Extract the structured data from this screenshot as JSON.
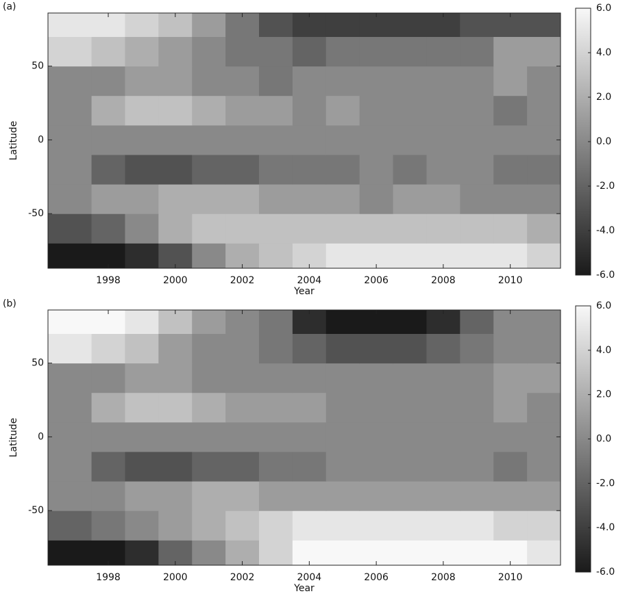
{
  "chart_data": [
    {
      "type": "heatmap",
      "panel_label": "(a)",
      "xlabel": "Year",
      "ylabel": "Latitude",
      "x": [
        1997,
        1998,
        1999,
        2000,
        2001,
        2002,
        2003,
        2004,
        2005,
        2006,
        2007,
        2008,
        2009,
        2010,
        2011
      ],
      "y": [
        -80,
        -60,
        -40,
        -20,
        0,
        20,
        40,
        60,
        80
      ],
      "z": [
        [
          -6,
          -6,
          -5,
          -3,
          0,
          2,
          3,
          4,
          5,
          5,
          5,
          5,
          5,
          5,
          4
        ],
        [
          -3,
          -2,
          0,
          2,
          3,
          3,
          3,
          3,
          3,
          3,
          3,
          3,
          3,
          3,
          2
        ],
        [
          0,
          1,
          1,
          2,
          2,
          2,
          1,
          1,
          1,
          0,
          1,
          1,
          0,
          0,
          0
        ],
        [
          0,
          -2,
          -3,
          -3,
          -2,
          -2,
          -1,
          -1,
          -1,
          0,
          -1,
          0,
          0,
          -1,
          -1
        ],
        [
          0,
          0,
          0,
          0,
          0,
          0,
          0,
          0,
          0,
          0,
          0,
          0,
          0,
          0,
          0
        ],
        [
          0,
          2,
          3,
          3,
          2,
          1,
          1,
          0,
          1,
          0,
          0,
          0,
          0,
          -1,
          0
        ],
        [
          0,
          0,
          1,
          1,
          0,
          0,
          -1,
          0,
          0,
          0,
          0,
          0,
          0,
          1,
          0
        ],
        [
          4,
          3,
          2,
          1,
          0,
          -1,
          -1,
          -2,
          -1,
          -1,
          -1,
          -1,
          -1,
          1,
          1
        ],
        [
          5,
          5,
          4,
          3,
          1,
          -1,
          -3,
          -4,
          -4,
          -4,
          -4,
          -4,
          -3,
          -3,
          -3
        ]
      ],
      "xlim": [
        1996.2,
        2011.5
      ],
      "ylim": [
        -87,
        86
      ],
      "xticks": [
        1998,
        2000,
        2002,
        2004,
        2006,
        2008,
        2010
      ],
      "yticks": [
        -50,
        0,
        50
      ],
      "clim": [
        -6,
        6
      ],
      "colorscale": [
        "#1a1a1a",
        "#f8f8f8"
      ],
      "cticks": [
        {
          "value": -6,
          "label": "-6.0"
        },
        {
          "value": -4,
          "label": "-4.0"
        },
        {
          "value": -2,
          "label": "-2.0"
        },
        {
          "value": 0,
          "label": "0.0"
        },
        {
          "value": 2,
          "label": "2.0"
        },
        {
          "value": 4,
          "label": "4.0"
        },
        {
          "value": 6,
          "label": "6.0"
        }
      ]
    },
    {
      "type": "heatmap",
      "panel_label": "(b)",
      "xlabel": "Year",
      "ylabel": "Latitude",
      "x": [
        1997,
        1998,
        1999,
        2000,
        2001,
        2002,
        2003,
        2004,
        2005,
        2006,
        2007,
        2008,
        2009,
        2010,
        2011
      ],
      "y": [
        -80,
        -60,
        -40,
        -20,
        0,
        20,
        40,
        60,
        80
      ],
      "z": [
        [
          -6,
          -6,
          -5,
          -2,
          0,
          2,
          4,
          6,
          6,
          6,
          6,
          6,
          6,
          6,
          5
        ],
        [
          -2,
          -1,
          0,
          1,
          2,
          3,
          4,
          5,
          5,
          5,
          5,
          5,
          5,
          4,
          4
        ],
        [
          0,
          0,
          1,
          1,
          2,
          2,
          1,
          1,
          1,
          1,
          1,
          1,
          1,
          1,
          1
        ],
        [
          0,
          -2,
          -3,
          -3,
          -2,
          -2,
          -1,
          -1,
          0,
          0,
          0,
          0,
          0,
          -1,
          0
        ],
        [
          0,
          0,
          0,
          0,
          0,
          0,
          0,
          0,
          0,
          0,
          0,
          0,
          0,
          0,
          0
        ],
        [
          0,
          2,
          3,
          3,
          2,
          1,
          1,
          1,
          0,
          0,
          0,
          0,
          0,
          1,
          0
        ],
        [
          0,
          0,
          1,
          1,
          0,
          0,
          0,
          0,
          0,
          0,
          0,
          0,
          0,
          1,
          1
        ],
        [
          5,
          4,
          3,
          1,
          0,
          0,
          -1,
          -2,
          -3,
          -3,
          -3,
          -2,
          -1,
          0,
          0
        ],
        [
          6,
          6,
          5,
          3,
          1,
          0,
          -1,
          -5,
          -6,
          -6,
          -6,
          -5,
          -2,
          0,
          0
        ]
      ],
      "xlim": [
        1996.2,
        2011.5
      ],
      "ylim": [
        -87,
        86
      ],
      "xticks": [
        1998,
        2000,
        2002,
        2004,
        2006,
        2008,
        2010
      ],
      "yticks": [
        -50,
        0,
        50
      ],
      "clim": [
        -6,
        6
      ],
      "colorscale": [
        "#1a1a1a",
        "#f8f8f8"
      ],
      "cticks": [
        {
          "value": -6,
          "label": "-6.0"
        },
        {
          "value": -4,
          "label": "-4.0"
        },
        {
          "value": -2,
          "label": "-2.0"
        },
        {
          "value": 0,
          "label": "0.0"
        },
        {
          "value": 2,
          "label": "2.0"
        },
        {
          "value": 4,
          "label": "4.0"
        },
        {
          "value": 6,
          "label": "6.0"
        }
      ]
    }
  ]
}
